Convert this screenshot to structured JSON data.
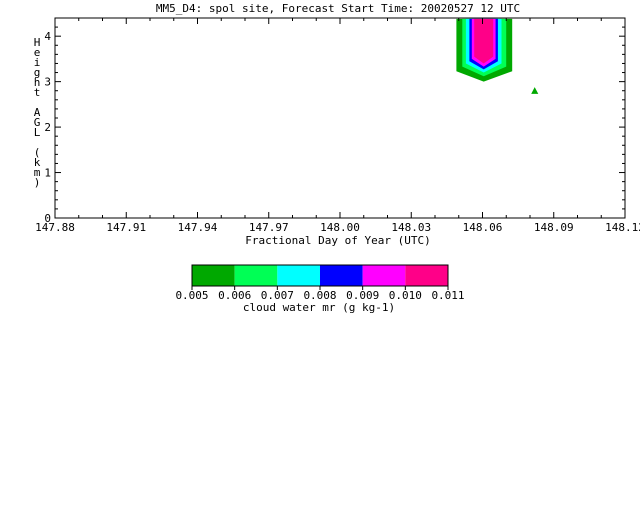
{
  "chart_data": {
    "type": "heatmap",
    "title": "MM5_D4: spol site,  Forecast Start Time: 20020527 12 UTC",
    "xlabel": "Fractional Day of Year (UTC)",
    "ylabel": "Height AGL (km)",
    "xlim": [
      147.88,
      148.12
    ],
    "ylim": [
      0,
      4.4
    ],
    "x_ticks": [
      147.88,
      147.91,
      147.94,
      147.97,
      148.0,
      148.03,
      148.06,
      148.09,
      148.12
    ],
    "x_tick_labels": [
      "147.88",
      "147.91",
      "147.94",
      "147.97",
      "148.00",
      "148.03",
      "148.06",
      "148.09",
      "148.12"
    ],
    "y_ticks": [
      0,
      1,
      2,
      3,
      4
    ],
    "y_tick_labels": [
      "0",
      "1",
      "2",
      "3",
      "4"
    ],
    "grid": false,
    "colorbar": {
      "label": "cloud water mr (g kg-1)",
      "levels": [
        0.005,
        0.006,
        0.007,
        0.008,
        0.009,
        0.01,
        0.011
      ],
      "level_labels": [
        "0.005",
        "0.006",
        "0.007",
        "0.008",
        "0.009",
        "0.010",
        "0.011"
      ],
      "colors": [
        "#00a800",
        "#00ff55",
        "#00ffff",
        "#0000ff",
        "#ff00ff",
        "#ff0088"
      ]
    },
    "contours": [
      {
        "level": 0.005,
        "points": [
          [
            148.049,
            4.38
          ],
          [
            148.049,
            3.23
          ],
          [
            148.0605,
            3.0
          ],
          [
            148.0725,
            3.23
          ],
          [
            148.0725,
            4.38
          ]
        ]
      },
      {
        "level": 0.006,
        "points": [
          [
            148.0515,
            4.38
          ],
          [
            148.0515,
            3.33
          ],
          [
            148.0605,
            3.12
          ],
          [
            148.07,
            3.33
          ],
          [
            148.07,
            4.38
          ]
        ]
      },
      {
        "level": 0.007,
        "points": [
          [
            148.053,
            4.38
          ],
          [
            148.053,
            3.4
          ],
          [
            148.0605,
            3.2
          ],
          [
            148.068,
            3.4
          ],
          [
            148.068,
            4.38
          ]
        ]
      },
      {
        "level": 0.008,
        "points": [
          [
            148.0545,
            4.38
          ],
          [
            148.0545,
            3.45
          ],
          [
            148.0605,
            3.27
          ],
          [
            148.0665,
            3.45
          ],
          [
            148.0665,
            4.38
          ]
        ]
      },
      {
        "level": 0.009,
        "points": [
          [
            148.0555,
            4.38
          ],
          [
            148.0555,
            3.5
          ],
          [
            148.0605,
            3.33
          ],
          [
            148.0655,
            3.5
          ],
          [
            148.0655,
            4.38
          ]
        ]
      },
      {
        "level": 0.01,
        "points": [
          [
            148.0565,
            4.38
          ],
          [
            148.0565,
            3.55
          ],
          [
            148.0605,
            3.4
          ],
          [
            148.0645,
            3.55
          ],
          [
            148.0645,
            4.38
          ]
        ]
      },
      {
        "level": 0.005,
        "points": [
          [
            148.0805,
            2.73
          ],
          [
            148.082,
            2.88
          ],
          [
            148.0835,
            2.73
          ]
        ]
      }
    ]
  }
}
